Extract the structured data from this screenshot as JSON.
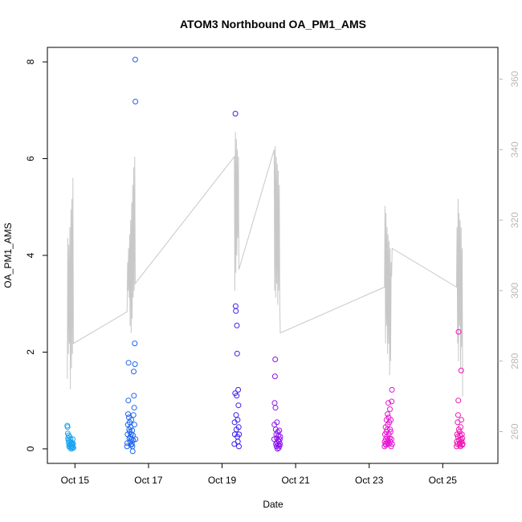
{
  "chart_data": {
    "type": "scatter",
    "title": "ATOM3 Northbound OA_PM1_AMS",
    "xlabel": "Date",
    "ylabel": "OA_PM1_AMS",
    "ylabel_right": "",
    "xlim": [
      "2017-10-14T06:00",
      "2017-10-26T12:00"
    ],
    "ylim": [
      -0.3,
      8.3
    ],
    "y2lim": [
      251,
      369
    ],
    "x_ticks": [
      {
        "value": "2017-10-15T00:00",
        "label": "Oct 15"
      },
      {
        "value": "2017-10-17T00:00",
        "label": "Oct 17"
      },
      {
        "value": "2017-10-19T00:00",
        "label": "Oct 19"
      },
      {
        "value": "2017-10-21T00:00",
        "label": "Oct 21"
      },
      {
        "value": "2017-10-23T00:00",
        "label": "Oct 23"
      },
      {
        "value": "2017-10-25T00:00",
        "label": "Oct 25"
      }
    ],
    "y_ticks": [
      0,
      2,
      4,
      6,
      8
    ],
    "y2_ticks": [
      260,
      280,
      300,
      320,
      340,
      360
    ],
    "grid": false,
    "legend": "none",
    "colors": {
      "line": "#c8c8c8",
      "axis": "#000000",
      "axis_right": "#b8b8b8",
      "flight_colors": [
        "#1aa5f0",
        "#1e64f0",
        "#3a1ef0",
        "#8c14f0",
        "#e614d2",
        "#f014b4"
      ]
    },
    "secondary_series": {
      "name": "",
      "type": "line",
      "points": [
        [
          "2017-10-14T19:00",
          275
        ],
        [
          "2017-10-14T19:20",
          315
        ],
        [
          "2017-10-14T19:40",
          282
        ],
        [
          "2017-10-14T20:00",
          313
        ],
        [
          "2017-10-14T20:20",
          285
        ],
        [
          "2017-10-14T20:40",
          318
        ],
        [
          "2017-10-14T21:00",
          272
        ],
        [
          "2017-10-14T21:20",
          323
        ],
        [
          "2017-10-14T21:40",
          278
        ],
        [
          "2017-10-14T22:00",
          326
        ],
        [
          "2017-10-14T22:20",
          282
        ],
        [
          "2017-10-14T22:40",
          332
        ],
        [
          "2017-10-14T23:00",
          285
        ],
        [
          "2017-10-16T10:00",
          294
        ],
        [
          "2017-10-16T10:20",
          308
        ],
        [
          "2017-10-16T10:40",
          300
        ],
        [
          "2017-10-16T11:00",
          312
        ],
        [
          "2017-10-16T11:20",
          298
        ],
        [
          "2017-10-16T11:40",
          316
        ],
        [
          "2017-10-16T12:00",
          290
        ],
        [
          "2017-10-16T12:20",
          320
        ],
        [
          "2017-10-16T12:40",
          288
        ],
        [
          "2017-10-16T13:00",
          325
        ],
        [
          "2017-10-16T13:20",
          292
        ],
        [
          "2017-10-16T13:40",
          330
        ],
        [
          "2017-10-16T14:00",
          298
        ],
        [
          "2017-10-16T14:20",
          335
        ],
        [
          "2017-10-16T14:40",
          300
        ],
        [
          "2017-10-16T15:00",
          338
        ],
        [
          "2017-10-16T15:20",
          302
        ],
        [
          "2017-10-19T08:00",
          338
        ],
        [
          "2017-10-19T08:20",
          300
        ],
        [
          "2017-10-19T08:40",
          345
        ],
        [
          "2017-10-19T09:00",
          305
        ],
        [
          "2017-10-19T09:20",
          343
        ],
        [
          "2017-10-19T09:40",
          310
        ],
        [
          "2017-10-19T10:00",
          340
        ],
        [
          "2017-10-19T10:20",
          315
        ],
        [
          "2017-10-19T10:40",
          338
        ],
        [
          "2017-10-19T11:00",
          306
        ],
        [
          "2017-10-20T10:00",
          340
        ],
        [
          "2017-10-20T10:20",
          300
        ],
        [
          "2017-10-20T10:40",
          341
        ],
        [
          "2017-10-20T11:00",
          298
        ],
        [
          "2017-10-20T11:20",
          338
        ],
        [
          "2017-10-20T11:40",
          302
        ],
        [
          "2017-10-20T12:00",
          336
        ],
        [
          "2017-10-20T12:20",
          296
        ],
        [
          "2017-10-20T12:40",
          334
        ],
        [
          "2017-10-20T13:00",
          300
        ],
        [
          "2017-10-20T13:20",
          330
        ],
        [
          "2017-10-20T13:40",
          296
        ],
        [
          "2017-10-20T14:00",
          288
        ],
        [
          "2017-10-23T10:00",
          301
        ],
        [
          "2017-10-23T10:20",
          324
        ],
        [
          "2017-10-23T10:40",
          285
        ],
        [
          "2017-10-23T11:00",
          322
        ],
        [
          "2017-10-23T11:20",
          290
        ],
        [
          "2017-10-23T11:40",
          318
        ],
        [
          "2017-10-23T12:00",
          282
        ],
        [
          "2017-10-23T12:20",
          316
        ],
        [
          "2017-10-23T12:40",
          285
        ],
        [
          "2017-10-23T13:00",
          314
        ],
        [
          "2017-10-23T13:20",
          276
        ],
        [
          "2017-10-23T13:40",
          312
        ],
        [
          "2017-10-23T14:00",
          280
        ],
        [
          "2017-10-23T14:20",
          308
        ],
        [
          "2017-10-23T14:40",
          304
        ],
        [
          "2017-10-23T15:00",
          312
        ],
        [
          "2017-10-25T09:00",
          301
        ],
        [
          "2017-10-25T09:20",
          318
        ],
        [
          "2017-10-25T09:40",
          285
        ],
        [
          "2017-10-25T10:00",
          326
        ],
        [
          "2017-10-25T10:20",
          280
        ],
        [
          "2017-10-25T10:40",
          322
        ],
        [
          "2017-10-25T11:00",
          290
        ],
        [
          "2017-10-25T11:20",
          320
        ],
        [
          "2017-10-25T11:40",
          278
        ],
        [
          "2017-10-25T12:00",
          318
        ],
        [
          "2017-10-25T12:20",
          284
        ],
        [
          "2017-10-25T12:40",
          312
        ],
        [
          "2017-10-25T13:00",
          270
        ]
      ]
    },
    "series": [
      {
        "name": "",
        "color_index": 0,
        "points": [
          [
            "2017-10-14T19:00",
            0.48
          ],
          [
            "2017-10-14T19:10",
            0.45
          ],
          [
            "2017-10-14T19:20",
            0.32
          ],
          [
            "2017-10-14T19:30",
            0.22
          ],
          [
            "2017-10-14T19:40",
            0.18
          ],
          [
            "2017-10-14T19:50",
            0.28
          ],
          [
            "2017-10-14T20:00",
            0.12
          ],
          [
            "2017-10-14T20:10",
            0.05
          ],
          [
            "2017-10-14T20:20",
            0.15
          ],
          [
            "2017-10-14T20:30",
            0.25
          ],
          [
            "2017-10-14T20:40",
            0.08
          ],
          [
            "2017-10-14T20:50",
            0.02
          ],
          [
            "2017-10-14T21:00",
            0.1
          ],
          [
            "2017-10-14T21:10",
            0.2
          ],
          [
            "2017-10-14T21:20",
            0.05
          ],
          [
            "2017-10-14T21:30",
            0.14
          ],
          [
            "2017-10-14T21:40",
            0.0
          ],
          [
            "2017-10-14T21:50",
            0.06
          ],
          [
            "2017-10-14T22:00",
            0.12
          ],
          [
            "2017-10-14T22:10",
            0.03
          ],
          [
            "2017-10-14T22:20",
            0.09
          ],
          [
            "2017-10-14T22:30",
            0.2
          ],
          [
            "2017-10-14T22:40",
            0.04
          ],
          [
            "2017-10-14T22:50",
            0.11
          ],
          [
            "2017-10-14T23:00",
            0.02
          ]
        ]
      },
      {
        "name": "",
        "color_index": 1,
        "points": [
          [
            "2017-10-16T10:00",
            0.05
          ],
          [
            "2017-10-16T10:10",
            0.12
          ],
          [
            "2017-10-16T10:20",
            0.3
          ],
          [
            "2017-10-16T10:30",
            0.5
          ],
          [
            "2017-10-16T10:40",
            0.72
          ],
          [
            "2017-10-16T10:50",
            1.0
          ],
          [
            "2017-10-16T11:00",
            1.78
          ],
          [
            "2017-10-16T11:10",
            0.65
          ],
          [
            "2017-10-16T11:20",
            0.4
          ],
          [
            "2017-10-16T11:30",
            0.22
          ],
          [
            "2017-10-16T11:40",
            0.55
          ],
          [
            "2017-10-16T11:50",
            0.35
          ],
          [
            "2017-10-16T12:00",
            0.15
          ],
          [
            "2017-10-16T12:10",
            0.25
          ],
          [
            "2017-10-16T12:20",
            0.45
          ],
          [
            "2017-10-16T12:30",
            0.08
          ],
          [
            "2017-10-16T12:40",
            0.3
          ],
          [
            "2017-10-16T12:50",
            0.6
          ],
          [
            "2017-10-16T13:00",
            0.2
          ],
          [
            "2017-10-16T13:10",
            0.1
          ],
          [
            "2017-10-16T13:20",
            0.38
          ],
          [
            "2017-10-16T13:30",
            0.05
          ],
          [
            "2017-10-16T13:40",
            -0.05
          ],
          [
            "2017-10-16T13:50",
            0.28
          ],
          [
            "2017-10-16T14:00",
            0.18
          ],
          [
            "2017-10-16T14:10",
            0.7
          ],
          [
            "2017-10-16T14:20",
            1.6
          ],
          [
            "2017-10-16T14:30",
            1.1
          ],
          [
            "2017-10-16T14:40",
            0.85
          ],
          [
            "2017-10-16T14:50",
            0.5
          ],
          [
            "2017-10-16T15:00",
            2.18
          ],
          [
            "2017-10-16T15:10",
            1.75
          ],
          [
            "2017-10-16T15:20",
            8.05
          ],
          [
            "2017-10-16T15:25",
            7.18
          ],
          [
            "2017-10-16T15:30",
            0.2
          ]
        ]
      },
      {
        "name": "",
        "color_index": 2,
        "points": [
          [
            "2017-10-19T08:00",
            0.1
          ],
          [
            "2017-10-19T08:10",
            0.55
          ],
          [
            "2017-10-19T08:20",
            0.3
          ],
          [
            "2017-10-19T08:30",
            1.15
          ],
          [
            "2017-10-19T08:40",
            6.93
          ],
          [
            "2017-10-19T08:50",
            2.95
          ],
          [
            "2017-10-19T09:00",
            2.85
          ],
          [
            "2017-10-19T09:10",
            0.7
          ],
          [
            "2017-10-19T09:20",
            0.4
          ],
          [
            "2017-10-19T09:30",
            1.1
          ],
          [
            "2017-10-19T09:40",
            2.55
          ],
          [
            "2017-10-19T09:50",
            1.97
          ],
          [
            "2017-10-19T10:00",
            0.25
          ],
          [
            "2017-10-19T10:10",
            0.6
          ],
          [
            "2017-10-19T10:20",
            0.15
          ],
          [
            "2017-10-19T10:30",
            1.22
          ],
          [
            "2017-10-19T10:40",
            0.9
          ],
          [
            "2017-10-19T10:50",
            0.45
          ],
          [
            "2017-10-19T11:00",
            0.05
          ],
          [
            "2017-10-19T11:05",
            0.3
          ]
        ]
      },
      {
        "name": "",
        "color_index": 3,
        "points": [
          [
            "2017-10-20T10:00",
            0.2
          ],
          [
            "2017-10-20T10:10",
            0.5
          ],
          [
            "2017-10-20T10:20",
            0.95
          ],
          [
            "2017-10-20T10:30",
            1.5
          ],
          [
            "2017-10-20T10:40",
            1.85
          ],
          [
            "2017-10-20T10:50",
            0.85
          ],
          [
            "2017-10-20T11:00",
            0.4
          ],
          [
            "2017-10-20T11:10",
            0.1
          ],
          [
            "2017-10-20T11:20",
            0.3
          ],
          [
            "2017-10-20T11:30",
            0.05
          ],
          [
            "2017-10-20T11:40",
            0.22
          ],
          [
            "2017-10-20T11:50",
            0.55
          ],
          [
            "2017-10-20T12:00",
            0.12
          ],
          [
            "2017-10-20T12:10",
            0.0
          ],
          [
            "2017-10-20T12:20",
            0.35
          ],
          [
            "2017-10-20T12:30",
            0.18
          ],
          [
            "2017-10-20T12:40",
            0.08
          ],
          [
            "2017-10-20T12:50",
            0.28
          ],
          [
            "2017-10-20T13:00",
            0.02
          ],
          [
            "2017-10-20T13:10",
            0.15
          ],
          [
            "2017-10-20T13:20",
            0.38
          ],
          [
            "2017-10-20T13:30",
            0.06
          ],
          [
            "2017-10-20T13:40",
            0.2
          ],
          [
            "2017-10-20T13:50",
            0.1
          ],
          [
            "2017-10-20T14:00",
            0.25
          ]
        ]
      },
      {
        "name": "",
        "color_index": 4,
        "points": [
          [
            "2017-10-23T10:00",
            0.05
          ],
          [
            "2017-10-23T10:10",
            0.15
          ],
          [
            "2017-10-23T10:20",
            0.3
          ],
          [
            "2017-10-23T10:30",
            0.1
          ],
          [
            "2017-10-23T10:40",
            0.45
          ],
          [
            "2017-10-23T10:50",
            0.2
          ],
          [
            "2017-10-23T11:00",
            0.08
          ],
          [
            "2017-10-23T11:10",
            0.35
          ],
          [
            "2017-10-23T11:20",
            0.6
          ],
          [
            "2017-10-23T11:30",
            0.25
          ],
          [
            "2017-10-23T11:40",
            0.12
          ],
          [
            "2017-10-23T11:50",
            0.4
          ],
          [
            "2017-10-23T12:00",
            0.72
          ],
          [
            "2017-10-23T12:10",
            0.5
          ],
          [
            "2017-10-23T12:20",
            0.18
          ],
          [
            "2017-10-23T12:30",
            0.95
          ],
          [
            "2017-10-23T12:40",
            0.65
          ],
          [
            "2017-10-23T12:50",
            0.3
          ],
          [
            "2017-10-23T13:00",
            0.1
          ],
          [
            "2017-10-23T13:10",
            0.55
          ],
          [
            "2017-10-23T13:20",
            0.22
          ],
          [
            "2017-10-23T13:30",
            0.82
          ],
          [
            "2017-10-23T13:40",
            0.4
          ],
          [
            "2017-10-23T13:50",
            0.15
          ],
          [
            "2017-10-23T14:00",
            0.35
          ],
          [
            "2017-10-23T14:10",
            0.6
          ],
          [
            "2017-10-23T14:20",
            0.05
          ],
          [
            "2017-10-23T14:30",
            0.2
          ],
          [
            "2017-10-23T14:40",
            0.98
          ],
          [
            "2017-10-23T14:50",
            1.22
          ],
          [
            "2017-10-23T15:00",
            0.1
          ]
        ]
      },
      {
        "name": "",
        "color_index": 5,
        "points": [
          [
            "2017-10-25T09:00",
            0.05
          ],
          [
            "2017-10-25T09:10",
            0.15
          ],
          [
            "2017-10-25T09:20",
            0.3
          ],
          [
            "2017-10-25T09:30",
            0.1
          ],
          [
            "2017-10-25T09:40",
            0.55
          ],
          [
            "2017-10-25T09:50",
            0.25
          ],
          [
            "2017-10-25T10:00",
            0.7
          ],
          [
            "2017-10-25T10:10",
            1.0
          ],
          [
            "2017-10-25T10:20",
            2.42
          ],
          [
            "2017-10-25T10:30",
            0.4
          ],
          [
            "2017-10-25T10:40",
            0.18
          ],
          [
            "2017-10-25T10:50",
            0.08
          ],
          [
            "2017-10-25T11:00",
            0.35
          ],
          [
            "2017-10-25T11:10",
            0.12
          ],
          [
            "2017-10-25T11:20",
            0.28
          ],
          [
            "2017-10-25T11:30",
            0.05
          ],
          [
            "2017-10-25T11:40",
            0.45
          ],
          [
            "2017-10-25T11:50",
            0.2
          ],
          [
            "2017-10-25T12:00",
            1.62
          ],
          [
            "2017-10-25T12:10",
            0.6
          ],
          [
            "2017-10-25T12:20",
            0.15
          ],
          [
            "2017-10-25T12:30",
            0.3
          ],
          [
            "2017-10-25T12:40",
            0.08
          ],
          [
            "2017-10-25T12:50",
            0.22
          ],
          [
            "2017-10-25T13:00",
            0.1
          ]
        ]
      }
    ]
  }
}
